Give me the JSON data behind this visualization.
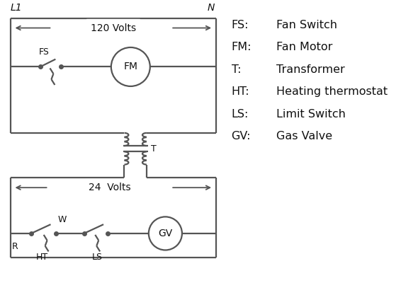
{
  "background_color": "#ffffff",
  "line_color": "#555555",
  "text_color": "#111111",
  "legend_items": [
    [
      "FS:",
      "Fan Switch"
    ],
    [
      "FM:",
      "Fan Motor"
    ],
    [
      "T:",
      "Transformer"
    ],
    [
      "HT:",
      "Heating thermostat"
    ],
    [
      "LS:",
      "Limit Switch"
    ],
    [
      "GV:",
      "Gas Valve"
    ]
  ]
}
